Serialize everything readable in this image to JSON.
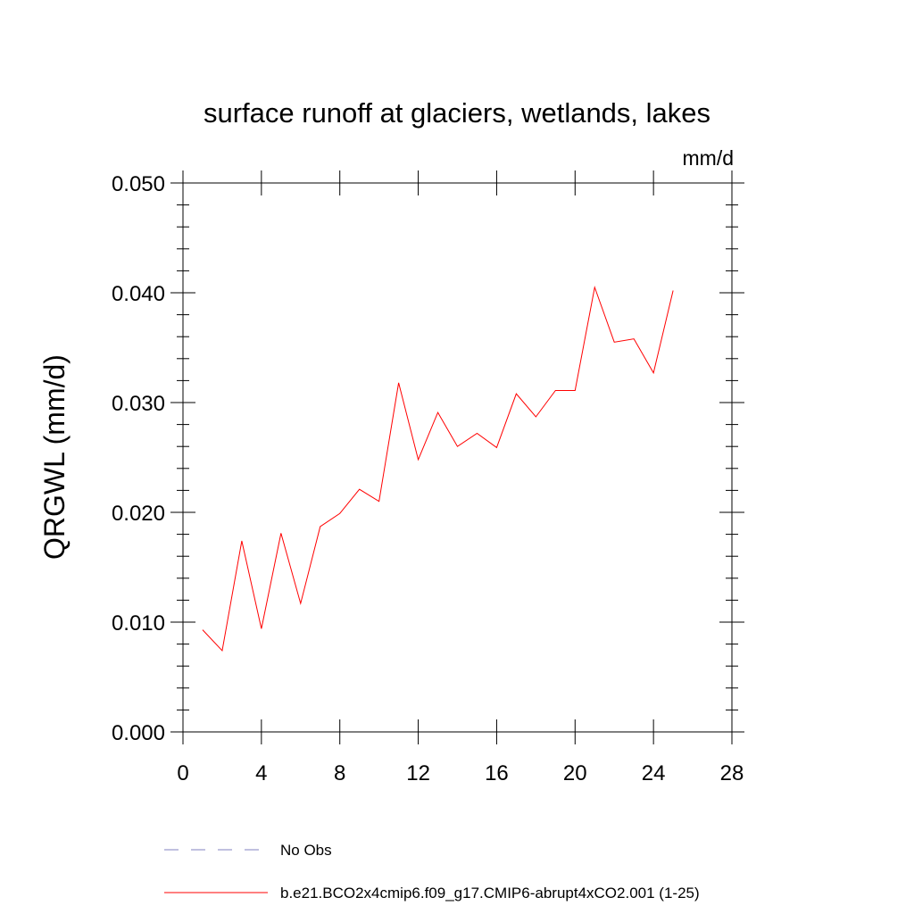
{
  "chart_data": {
    "type": "line",
    "title": "surface runoff at glaciers, wetlands, lakes",
    "units_label": "mm/d",
    "xlabel": "",
    "ylabel": "QRGWL  (mm/d)",
    "xlim": [
      0,
      28
    ],
    "ylim": [
      0.0,
      0.05
    ],
    "x_ticks": [
      0,
      4,
      8,
      12,
      16,
      20,
      24,
      28
    ],
    "x_tick_labels": [
      "0",
      "4",
      "8",
      "12",
      "16",
      "20",
      "24",
      "28"
    ],
    "y_ticks": [
      0.0,
      0.01,
      0.02,
      0.03,
      0.04,
      0.05
    ],
    "y_tick_labels": [
      "0.000",
      "0.010",
      "0.020",
      "0.030",
      "0.040",
      "0.050"
    ],
    "grid": false,
    "legend_position": "bottom",
    "series": [
      {
        "name": "No Obs",
        "color": "#8080c0",
        "style": "dashed",
        "x": [],
        "y": []
      },
      {
        "name": "b.e21.BCO2x4cmip6.f09_g17.CMIP6-abrupt4xCO2.001 (1-25)",
        "color": "#ff0000",
        "style": "solid",
        "x": [
          1,
          2,
          3,
          4,
          5,
          6,
          7,
          8,
          9,
          10,
          11,
          12,
          13,
          14,
          15,
          16,
          17,
          18,
          19,
          20,
          21,
          22,
          23,
          24,
          25
        ],
        "y": [
          0.0093,
          0.0074,
          0.0174,
          0.0094,
          0.0181,
          0.0117,
          0.0187,
          0.0199,
          0.0221,
          0.021,
          0.0318,
          0.0248,
          0.0291,
          0.026,
          0.0272,
          0.0259,
          0.0308,
          0.0287,
          0.0311,
          0.0311,
          0.0405,
          0.0355,
          0.0358,
          0.0327,
          0.0402
        ]
      }
    ]
  }
}
